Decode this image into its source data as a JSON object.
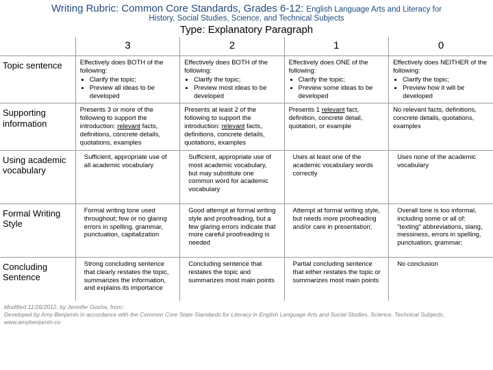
{
  "header": {
    "title_main": "Writing Rubric: Common Core Standards, Grades 6-12:",
    "title_sub1": "English Language Arts and Literacy for",
    "title_sub2": "History, Social Studies, Science, and Technical Subjects",
    "type_label": "Type: Explanatory Paragraph"
  },
  "scores": [
    "3",
    "2",
    "1",
    "0"
  ],
  "rows": [
    {
      "label": "Topic sentence",
      "cells": [
        {
          "lead": "Effectively does BOTH of the following:",
          "bullets": [
            "Clarify the topic;",
            "Preview all ideas to be developed"
          ]
        },
        {
          "lead": "Effectively does BOTH of the following:",
          "bullets": [
            "Clarify the topic;",
            "Preview most ideas to be developed"
          ]
        },
        {
          "lead": "Effectively does ONE of the following:",
          "bullets": [
            "Clarify the topic;",
            "Preview some  ideas  to be developed"
          ]
        },
        {
          "lead": "Effectively does NEITHER of the following:",
          "bullets": [
            "Clarify the topic;",
            "Preview how it will be developed"
          ]
        }
      ]
    },
    {
      "label": "Supporting information",
      "cells": [
        {
          "html": "Presents 3 or more of the following  to support the introduction: <span class='u'>relevant</span> facts, definitions, concrete details, quotations, examples"
        },
        {
          "html": "Presents at least 2 of the following to support  the introduction: <span class='u'>relevant</span> facts, definitions, concrete details, quotations, examples"
        },
        {
          "html": "Presents 1  <span class='u'>relevant</span> fact, definition, concrete detail, quotation,  or          example"
        },
        {
          "html": "No relevant facts, definitions, concrete details, quotations, examples"
        }
      ]
    },
    {
      "label": "Using academic vocabulary",
      "cells": [
        {
          "text": "Sufficient, appropriate use of  all academic vocabulary"
        },
        {
          "text": "Sufficient, appropriate use of  most academic vocabulary, but may substitute one common word for academic vocabulary"
        },
        {
          "text": "Uses at least one of the academic vocabulary words correctly"
        },
        {
          "text": "Uses none of the academic vocabulary"
        }
      ]
    },
    {
      "label": "Formal Writing Style",
      "cells": [
        {
          "text": "Formal writing tone used throughout; few or no glaring errors in spelling, grammar, punctuation, capitalization"
        },
        {
          "text": "Good attempt at formal writing style and proofreading, but a few glaring errors indicate that more careful proofreading is needed"
        },
        {
          "text": "Attempt at formal writing style, but needs more proofreading and/or care in presentation;"
        },
        {
          "text": "Overall tone is too informal, including some or all of: \"texting\" abbreviations, slang, messiness, errors in spelling, punctuation, grammar;"
        }
      ]
    },
    {
      "label": "Concluding Sentence",
      "cells": [
        {
          "text": "Strong concluding sentence that clearly restates the topic, summarizes the information, and explains its importance"
        },
        {
          "text": "Concluding sentence that restates the topic  and summarizes most main points"
        },
        {
          "text": "Partial concluding sentence that either restates the topic or summarizes most main points"
        },
        {
          "text": "No conclusion"
        }
      ]
    }
  ],
  "footer": {
    "line1": "Modified 11/26/2012, by Jennifer Gosha, from::",
    "line2": "Developed by Amy Benjamin in accordance with the Common Core State Standards for Literacy in English Language Arts and Social Studies, Science, Technical Subjects, www.amybenjamin.co"
  },
  "colors": {
    "header_text": "#1f497d",
    "border": "#999999",
    "footer_text": "#7e7e7e",
    "background": "#ffffff"
  }
}
